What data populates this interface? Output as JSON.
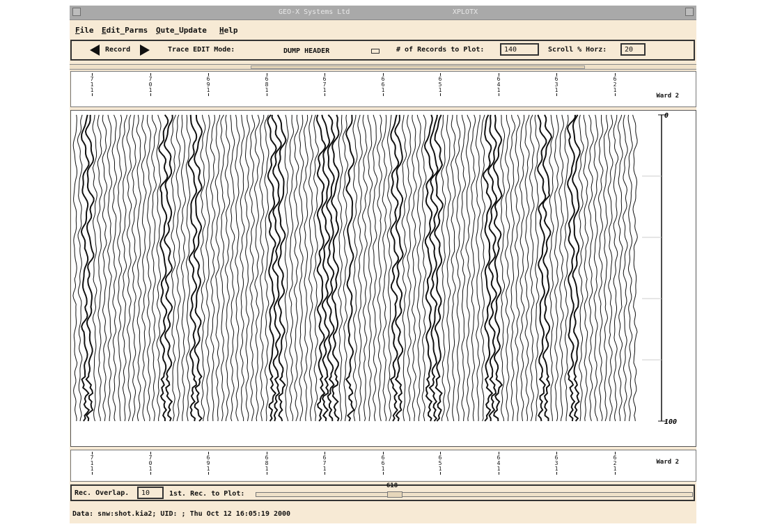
{
  "window": {
    "title_left": "GEO-X Systems Ltd",
    "title_right": "XPLOTX"
  },
  "menu": [
    {
      "mnemonic": "F",
      "rest": "ile"
    },
    {
      "mnemonic": "E",
      "rest": "dit_Parms"
    },
    {
      "mnemonic": "Q",
      "rest": "ute_Update"
    },
    {
      "mnemonic": "H",
      "rest": "elp"
    }
  ],
  "toolbar": {
    "record_label": "Record",
    "trace_edit_label": "Trace EDIT Mode:",
    "trace_edit_value": "DUMP HEADER",
    "records_to_plot_label": "# of Records to Plot:",
    "records_to_plot_value": "140",
    "scroll_label": "Scroll % Horz:",
    "scroll_value": "20"
  },
  "header_ticks": {
    "word_label": "Ward 2",
    "groups": [
      [
        "7",
        "1",
        "1"
      ],
      [
        "7",
        "0",
        "1"
      ],
      [
        "6",
        "9",
        "1"
      ],
      [
        "6",
        "8",
        "1"
      ],
      [
        "6",
        "7",
        "1"
      ],
      [
        "6",
        "6",
        "1"
      ],
      [
        "6",
        "5",
        "1"
      ],
      [
        "6",
        "4",
        "1"
      ],
      [
        "6",
        "3",
        "1"
      ],
      [
        "6",
        "2",
        "1"
      ]
    ]
  },
  "plot": {
    "time_start_label": "0",
    "time_end_label": "100",
    "trace_count": 115,
    "horizontal_scroll_fraction": 0.5
  },
  "bottom": {
    "overlap_label": "Rec. Overlap.",
    "overlap_value": "10",
    "first_rec_label": "1st. Rec. to Plot:",
    "first_rec_value": "618",
    "first_rec_slider_fraction": 0.31
  },
  "status": {
    "text": "Data: snw:shot.kia2; UID: ; Thu Oct 12 16:05:19 2000"
  },
  "colors": {
    "panel_bg": "#f7ead5",
    "titlebar_bg": "#a9a9a9",
    "ink": "#111111"
  }
}
